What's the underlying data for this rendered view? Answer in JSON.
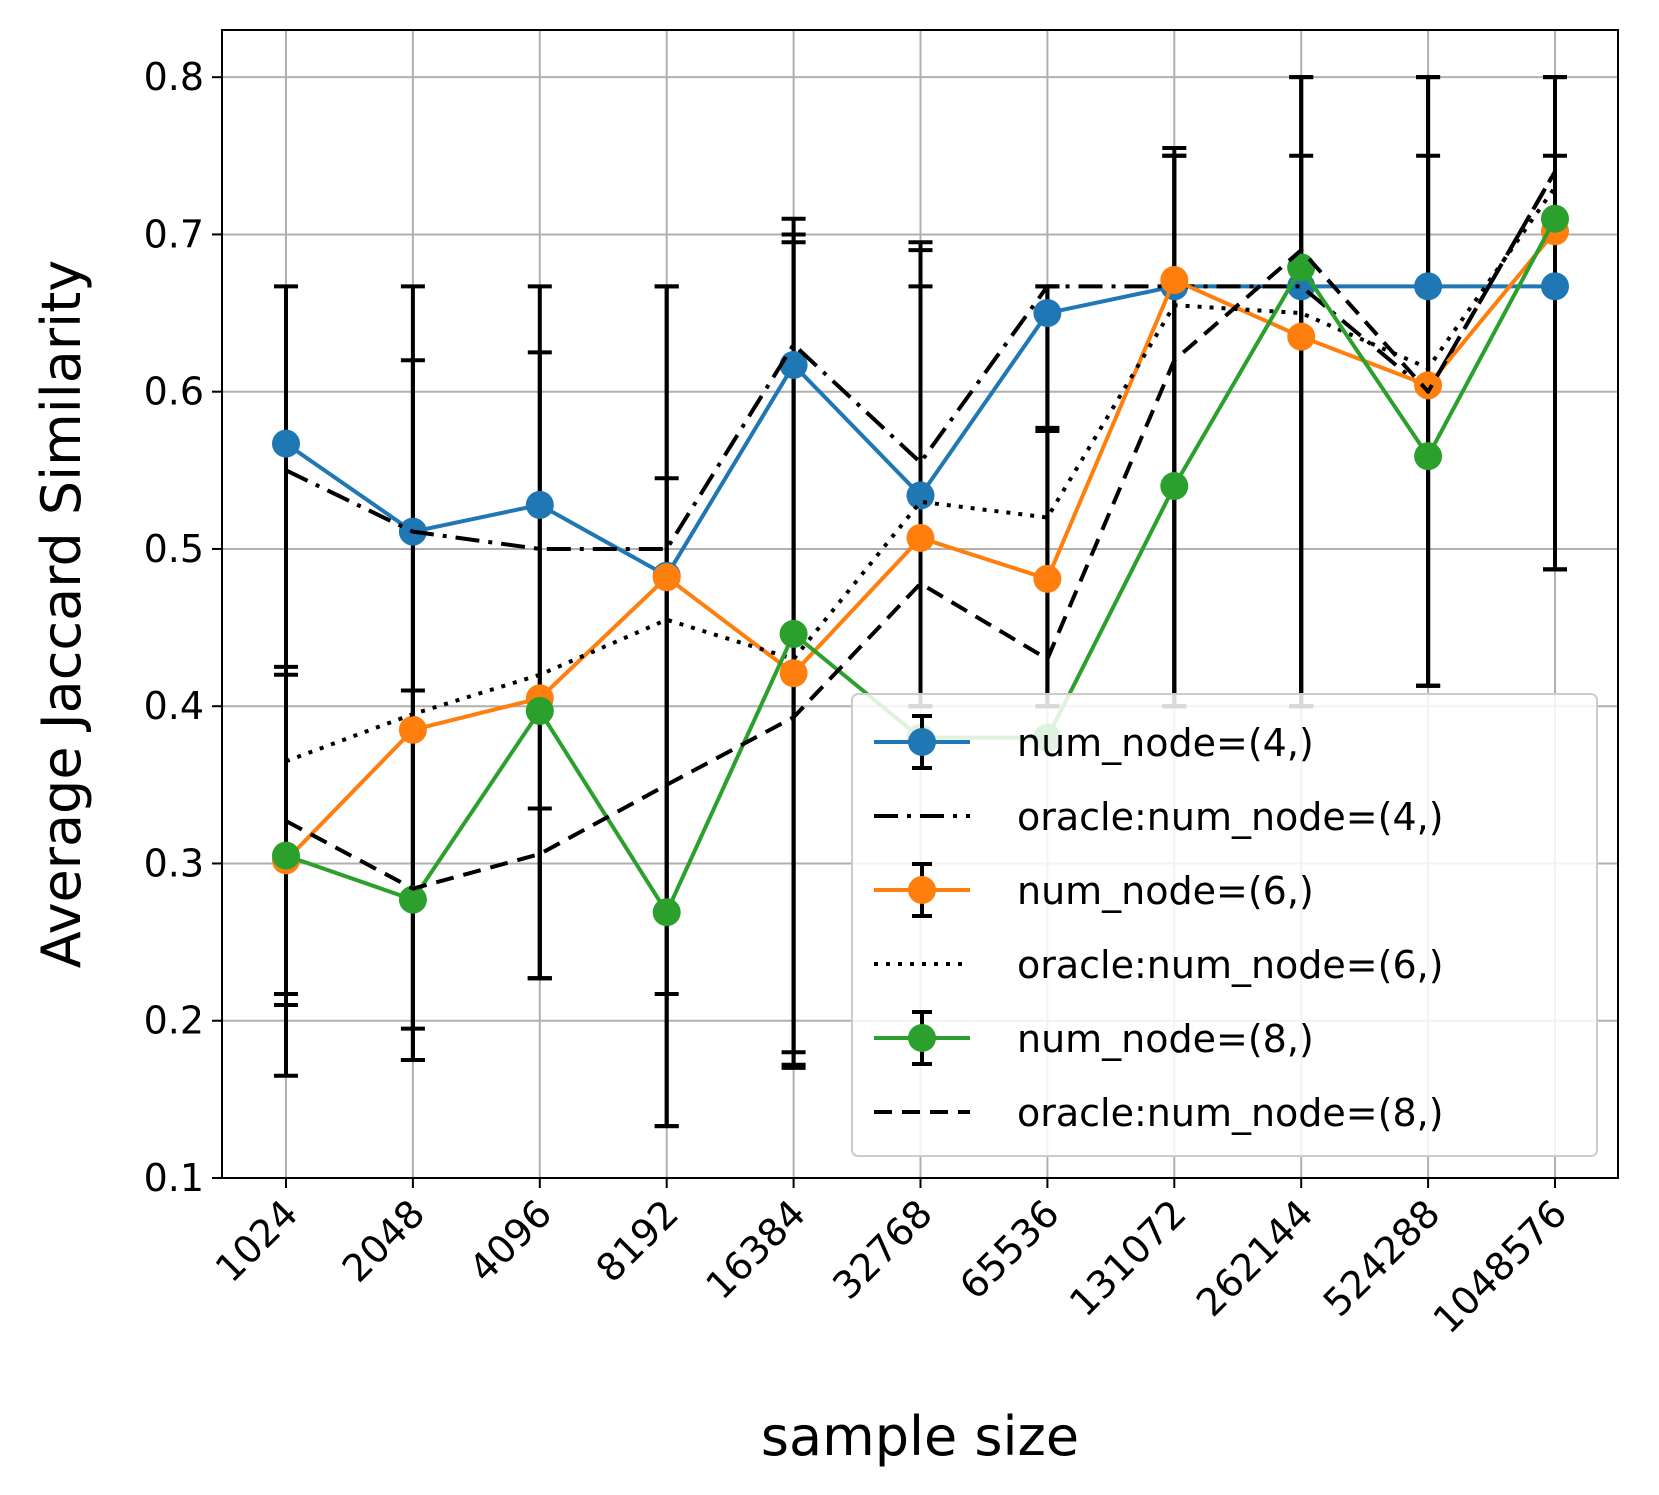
{
  "chart_data": {
    "type": "line",
    "title": "",
    "xlabel": "sample size",
    "ylabel": "Average Jaccard Similarity",
    "categories": [
      "1024",
      "2048",
      "4096",
      "8192",
      "16384",
      "32768",
      "65536",
      "131072",
      "262144",
      "524288",
      "1048576"
    ],
    "ylim": [
      0.1,
      0.83
    ],
    "yticks": [
      0.1,
      0.2,
      0.3,
      0.4,
      0.5,
      0.6,
      0.7,
      0.8
    ],
    "ytick_labels": [
      "0.1",
      "0.2",
      "0.3",
      "0.4",
      "0.5",
      "0.6",
      "0.7",
      "0.8"
    ],
    "grid": true,
    "legend_position": "lower-right",
    "series": [
      {
        "name": "num_node=(4,)",
        "color": "#1f77b4",
        "style": "solid-marker",
        "values": [
          0.567,
          0.511,
          0.528,
          0.483,
          0.617,
          0.534,
          0.65,
          0.667,
          0.667,
          0.667,
          0.667
        ],
        "err_low": [
          0.165,
          0.175,
          0.227,
          0.217,
          0.18,
          0.4,
          0.577,
          0.4,
          0.4,
          0.413,
          0.487
        ],
        "err_high": [
          0.667,
          0.667,
          0.667,
          0.667,
          0.71,
          0.667,
          0.667,
          0.755,
          0.8,
          0.8,
          0.8
        ]
      },
      {
        "name": "oracle:num_node=(4,)",
        "color": "#000000",
        "style": "dashdot",
        "values": [
          0.55,
          0.511,
          0.5,
          0.5,
          0.63,
          0.555,
          0.667,
          0.667,
          0.667,
          0.6,
          0.74
        ]
      },
      {
        "name": "num_node=(6,)",
        "color": "#ff7f0e",
        "style": "solid-marker",
        "values": [
          0.302,
          0.385,
          0.405,
          0.482,
          0.421,
          0.507,
          0.481,
          0.671,
          0.635,
          0.604,
          0.702
        ],
        "err_low": [
          0.217,
          0.195,
          0.227,
          0.133,
          0.172,
          0.4,
          0.4,
          0.4,
          0.4,
          0.413,
          0.487
        ],
        "err_high": [
          0.425,
          0.62,
          0.625,
          0.667,
          0.7,
          0.69,
          0.667,
          0.75,
          0.8,
          0.8,
          0.8
        ]
      },
      {
        "name": "oracle:num_node=(6,)",
        "color": "#000000",
        "style": "dotted",
        "values": [
          0.365,
          0.395,
          0.42,
          0.455,
          0.43,
          0.53,
          0.52,
          0.655,
          0.65,
          0.615,
          0.73
        ]
      },
      {
        "name": "num_node=(8,)",
        "color": "#2ca02c",
        "style": "solid-marker",
        "values": [
          0.305,
          0.277,
          0.397,
          0.269,
          0.446,
          0.38,
          0.38,
          0.54,
          0.679,
          0.559,
          0.71
        ],
        "err_low": [
          0.21,
          0.175,
          0.227,
          0.133,
          0.17,
          0.4,
          0.4,
          0.4,
          0.4,
          0.413,
          0.487
        ],
        "err_high": [
          0.42,
          0.41,
          0.335,
          0.545,
          0.695,
          0.695,
          0.575,
          0.75,
          0.75,
          0.75,
          0.75
        ]
      },
      {
        "name": "oracle:num_node=(8,)",
        "color": "#000000",
        "style": "dashed",
        "values": [
          0.327,
          0.284,
          0.306,
          0.35,
          0.393,
          0.478,
          0.43,
          0.62,
          0.69,
          0.6,
          0.74
        ]
      }
    ]
  }
}
